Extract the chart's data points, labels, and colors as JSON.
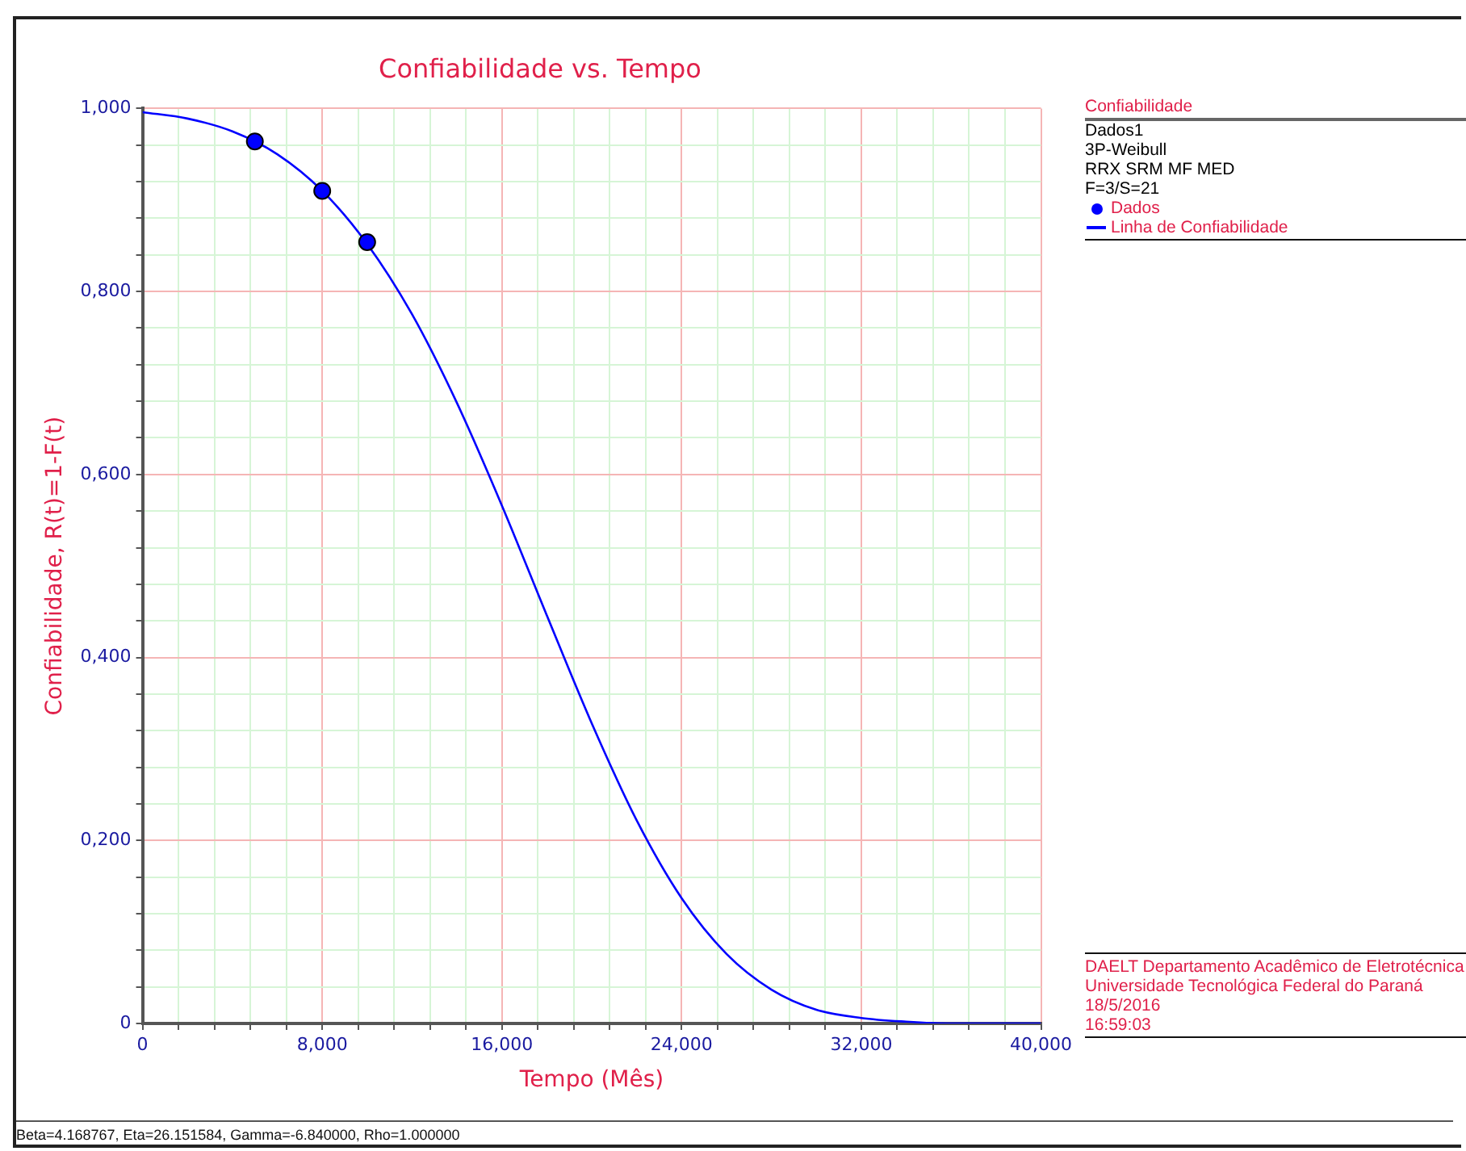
{
  "chart_data": {
    "type": "scatter",
    "title": "Confiabilidade vs. Tempo",
    "xlabel": "Tempo (Mês)",
    "ylabel": "Confiabilidade, R(t)=1-F(t)",
    "legend_title": "Confiabilidade",
    "annotations": [
      "Dados1",
      "3P-Weibull",
      "RRX SRM MF MED",
      "F=3/S=21",
      "DAELT Departamento Acadêmico de Eletrotécnica",
      "Universidade Tecnológica Federal do Paraná",
      "18/5/2016",
      "16:59:03",
      "Beta=4.168767, Eta=26.151584, Gamma=-6.840000, Rho=1.000000"
    ],
    "series": [
      {
        "name": "Dados",
        "type": "scatter",
        "marker": "circle",
        "color": "#0000ff",
        "x": [
          5,
          8,
          10
        ],
        "values": [
          0.964,
          0.91,
          0.854
        ]
      },
      {
        "name": "Linha de Confiabilidade",
        "type": "line",
        "marker": "none",
        "line_style": "solid",
        "color": "#0000ff",
        "x": [
          0,
          2,
          4,
          6,
          8,
          10,
          12,
          14,
          16,
          18,
          20,
          22,
          24,
          26,
          28,
          30,
          32,
          34,
          36,
          38,
          40
        ],
        "values": [
          0.996,
          0.989,
          0.975,
          0.95,
          0.91,
          0.852,
          0.775,
          0.678,
          0.566,
          0.446,
          0.328,
          0.222,
          0.137,
          0.076,
          0.037,
          0.015,
          0.006,
          0.002,
          0,
          0,
          0
        ]
      }
    ],
    "xlim": [
      0,
      40
    ],
    "xticks": [
      0,
      {
        "value": 1.6,
        "label": null
      },
      {
        "value": 3.2,
        "label": null
      },
      {
        "value": 4.8,
        "label": null
      },
      {
        "value": 6.4,
        "label": null
      },
      {
        "value": 8,
        "label": "8,000"
      },
      {
        "value": 9.6,
        "label": null
      },
      {
        "value": 11.2,
        "label": null
      },
      {
        "value": 12.8,
        "label": null
      },
      {
        "value": 14.4,
        "label": null
      },
      {
        "value": 16,
        "label": "16,000"
      },
      {
        "value": 17.6,
        "label": null
      },
      {
        "value": 19.2,
        "label": null
      },
      {
        "value": 20.8,
        "label": null
      },
      {
        "value": 22.4,
        "label": null
      },
      {
        "value": 24,
        "label": "24,000"
      },
      {
        "value": 25.6,
        "label": null
      },
      {
        "value": 27.2,
        "label": null
      },
      {
        "value": 28.8,
        "label": null
      },
      {
        "value": 30.4,
        "label": null
      },
      {
        "value": 32,
        "label": "32,000"
      },
      {
        "value": 33.6,
        "label": null
      },
      {
        "value": 35.2,
        "label": null
      },
      {
        "value": 36.8,
        "label": null
      },
      {
        "value": 38.4,
        "label": null
      },
      {
        "value": 40,
        "label": "40,000"
      }
    ],
    "ylim": [
      0,
      1
    ],
    "yticks": [
      0,
      {
        "value": 0.04,
        "label": null
      },
      {
        "value": 0.08,
        "label": null
      },
      {
        "value": 0.12,
        "label": null
      },
      {
        "value": 0.16,
        "label": null
      },
      {
        "value": 0.2,
        "label": "0,200"
      },
      {
        "value": 0.24,
        "label": null
      },
      {
        "value": 0.28,
        "label": null
      },
      {
        "value": 0.32,
        "label": null
      },
      {
        "value": 0.36,
        "label": null
      },
      {
        "value": 0.4,
        "label": "0,400"
      },
      {
        "value": 0.44,
        "label": null
      },
      {
        "value": 0.48,
        "label": null
      },
      {
        "value": 0.52,
        "label": null
      },
      {
        "value": 0.56,
        "label": null
      },
      {
        "value": 0.6,
        "label": "0,600"
      },
      {
        "value": 0.64,
        "label": null
      },
      {
        "value": 0.68,
        "label": null
      },
      {
        "value": 0.72,
        "label": null
      },
      {
        "value": 0.76,
        "label": null
      },
      {
        "value": 0.8,
        "label": "0,800"
      },
      {
        "value": 0.84,
        "label": null
      },
      {
        "value": 0.88,
        "label": null
      },
      {
        "value": 0.92,
        "label": null
      },
      {
        "value": 0.96,
        "label": null
      },
      {
        "value": 1,
        "label": "1,000"
      }
    ],
    "grid": true,
    "legend": "top right"
  }
}
